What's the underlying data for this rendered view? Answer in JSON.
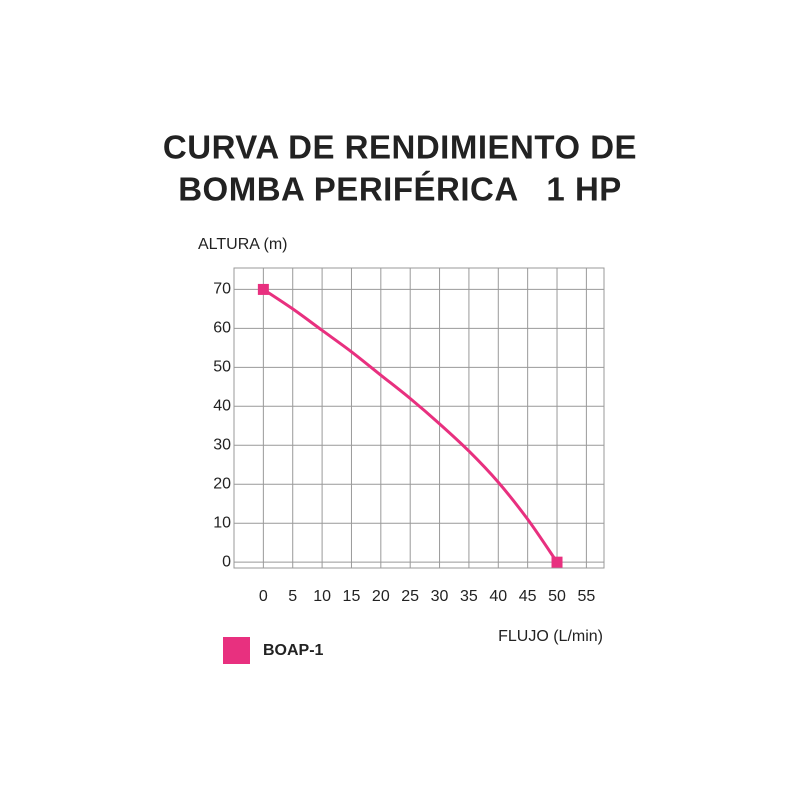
{
  "chart_data": {
    "type": "line",
    "title": [
      "CURVA DE RENDIMIENTO DE",
      "BOMBA PERIFÉRICA   1 HP"
    ],
    "y_label": "ALTURA  (m)",
    "x_label": "FLUJO (L/min)",
    "x": [
      0,
      5,
      10,
      15,
      20,
      25,
      30,
      35,
      40,
      45,
      50
    ],
    "series": [
      {
        "name": "BOAP-1",
        "color": "#e8307f",
        "values": [
          70,
          65,
          59.5,
          54,
          48,
          42,
          35.5,
          28.5,
          20.5,
          11,
          0
        ]
      }
    ],
    "xlim": [
      -5,
      58
    ],
    "ylim": [
      -1.5,
      75.5
    ],
    "xticks": [
      0,
      5,
      10,
      15,
      20,
      25,
      30,
      35,
      40,
      45,
      50,
      55
    ],
    "yticks": [
      0,
      10,
      20,
      30,
      40,
      50,
      60,
      70
    ],
    "grid": true
  }
}
